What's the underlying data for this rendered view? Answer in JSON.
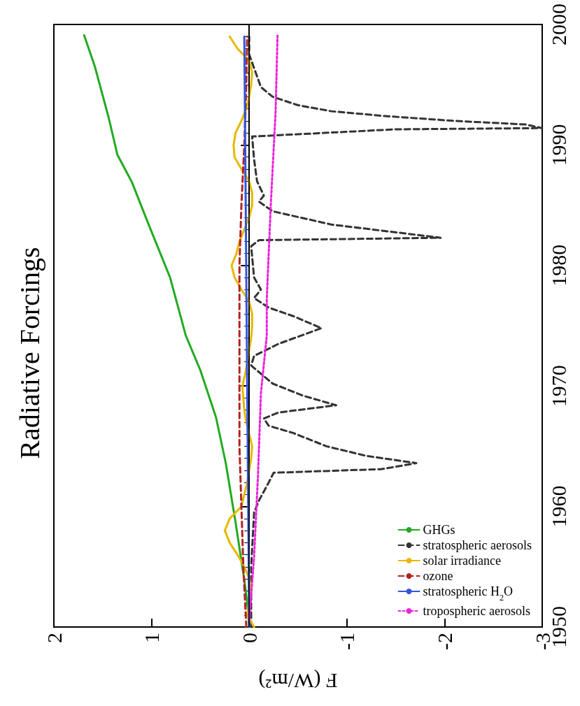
{
  "chart_data": {
    "type": "line",
    "title": "Radiative Forcings",
    "xlabel": "F (W/m²)",
    "ylim": [
      1950,
      2000
    ],
    "yticks": [
      1950,
      1960,
      1970,
      1980,
      1990,
      2000
    ],
    "xlim": [
      2,
      -3
    ],
    "xticks": [
      2,
      1,
      0,
      -1,
      -2,
      -3
    ],
    "grid": false,
    "legend": "bottom right",
    "marker": "none",
    "ref_lines": [
      {
        "axis": "x",
        "value": 0,
        "color": "#000000"
      }
    ],
    "series": [
      {
        "name": "GHGs",
        "color": "#22aa22",
        "line_style": "solid",
        "values": [
          1950,
          1952,
          1953.9,
          1958.7,
          1963.6,
          1967.4,
          1971.3,
          1974.2,
          1979,
          1983.4,
          1986.9,
          1989.2,
          1992.3,
          1996.5,
          1999.1
        ],
        "x": [
          0,
          0.02,
          0.05,
          0.14,
          0.24,
          0.34,
          0.5,
          0.65,
          0.81,
          1.03,
          1.2,
          1.35,
          1.44,
          1.58,
          1.69
        ]
      },
      {
        "name": "stratospheric aerosols",
        "color": "#333333",
        "line_style": "dashed",
        "values": [
          1950,
          1955,
          1959.5,
          1960.5,
          1962,
          1962.8,
          1963.1,
          1963.3,
          1963.6,
          1964.2,
          1965,
          1966.1,
          1966.7,
          1967.3,
          1967.8,
          1968.4,
          1969.2,
          1970.2,
          1971.7,
          1972.5,
          1973.5,
          1974.8,
          1975.8,
          1976.5,
          1977.3,
          1978,
          1979,
          1981.6,
          1982.1,
          1982.3,
          1983.4,
          1984.5,
          1985.3,
          1985.8,
          1987,
          1988.8,
          1990.7,
          1991.3,
          1991.4,
          1991.7,
          1992,
          1992.4,
          1992.8,
          1993.3,
          1994,
          1994.8,
          1997.5,
          1999
        ],
        "x": [
          -0.02,
          -0.02,
          -0.05,
          -0.1,
          -0.2,
          -0.25,
          -1.35,
          -1.5,
          -1.71,
          -1.2,
          -0.79,
          -0.45,
          -0.2,
          -0.15,
          -0.3,
          -0.89,
          -0.55,
          -0.24,
          -0.02,
          -0.05,
          -0.3,
          -0.74,
          -0.45,
          -0.2,
          -0.05,
          -0.12,
          -0.05,
          -0.02,
          -0.1,
          -1.96,
          -0.84,
          -0.24,
          -0.1,
          -0.15,
          -0.08,
          -0.05,
          -0.03,
          -1.5,
          -3,
          -2.83,
          -2.1,
          -1.39,
          -0.84,
          -0.5,
          -0.24,
          -0.12,
          0,
          0
        ]
      },
      {
        "name": "solar irradiance",
        "color": "#e8b800",
        "line_style": "solid",
        "values": [
          1950,
          1951,
          1952,
          1953,
          1954,
          1955,
          1956,
          1957,
          1958,
          1959,
          1960,
          1961,
          1962,
          1963,
          1964,
          1965,
          1966,
          1967,
          1968,
          1969,
          1970,
          1971,
          1972,
          1973,
          1974,
          1975,
          1976,
          1977,
          1978,
          1979,
          1980,
          1981,
          1982,
          1983,
          1984,
          1985,
          1986,
          1987,
          1988,
          1989,
          1990,
          1991,
          1992,
          1993,
          1994,
          1995,
          1996,
          1997,
          1998,
          1999
        ],
        "x": [
          -0.05,
          0.02,
          0,
          -0.02,
          0,
          0.05,
          0.12,
          0.2,
          0.25,
          0.2,
          0.08,
          0.05,
          0.02,
          0,
          -0.02,
          -0.03,
          0,
          0.03,
          0.05,
          0.06,
          0.07,
          0.04,
          0.02,
          0,
          -0.02,
          -0.03,
          -0.03,
          0,
          0.08,
          0.15,
          0.18,
          0.13,
          0.1,
          0.05,
          0,
          -0.03,
          -0.03,
          0,
          0.08,
          0.15,
          0.16,
          0.14,
          0.08,
          0.03,
          0,
          -0.02,
          -0.03,
          0,
          0.12,
          0.2
        ]
      },
      {
        "name": "ozone",
        "color": "#b22222",
        "line_style": "dashed",
        "values": [
          1950,
          1955,
          1960,
          1965,
          1970,
          1975,
          1980,
          1985,
          1990,
          1995,
          1999
        ],
        "x": [
          0.03,
          0.06,
          0.08,
          0.1,
          0.1,
          0.1,
          0.1,
          0.08,
          0.05,
          0.03,
          0.02
        ]
      },
      {
        "name": "stratospheric H$_{2}$O",
        "color": "#3355dd",
        "line_style": "solid",
        "values": [
          1950,
          1999
        ],
        "x": [
          0,
          0.05
        ]
      },
      {
        "name": "tropospheric aerosols",
        "color": "#ee22dd",
        "line_style": "dotted",
        "values": [
          1950.6,
          1955.8,
          1962.6,
          1969.4,
          1974.2,
          1977.2,
          1984.9,
          1992.7,
          1999.1
        ],
        "x": [
          0,
          -0.05,
          -0.09,
          -0.12,
          -0.18,
          -0.18,
          -0.22,
          -0.27,
          -0.29
        ]
      }
    ]
  }
}
